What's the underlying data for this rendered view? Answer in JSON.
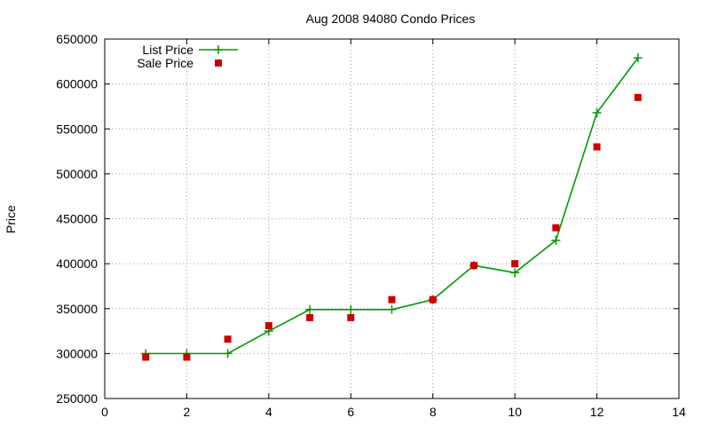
{
  "chart_data": {
    "type": "line",
    "title": "Aug 2008 94080 Condo Prices",
    "xlabel": "",
    "ylabel": "Price",
    "xlim": [
      0,
      14
    ],
    "ylim": [
      250000,
      650000
    ],
    "x_ticks": [
      0,
      2,
      4,
      6,
      8,
      10,
      12,
      14
    ],
    "y_ticks": [
      250000,
      300000,
      350000,
      400000,
      450000,
      500000,
      550000,
      600000,
      650000
    ],
    "grid": true,
    "legend_position": "top-left",
    "series": [
      {
        "name": "List Price",
        "style": "linespoints",
        "marker": "plus",
        "color": "#009900",
        "x": [
          1,
          2,
          3,
          4,
          5,
          6,
          7,
          8,
          9,
          10,
          11,
          12,
          13
        ],
        "y": [
          300000,
          300000,
          300000,
          325000,
          349000,
          349000,
          349000,
          360000,
          398000,
          390000,
          426000,
          568000,
          629000
        ]
      },
      {
        "name": "Sale Price",
        "style": "points",
        "marker": "square",
        "color": "#cc0000",
        "x": [
          1,
          2,
          3,
          4,
          5,
          6,
          7,
          8,
          9,
          10,
          11,
          12,
          13
        ],
        "y": [
          296000,
          296000,
          316000,
          331000,
          340000,
          340000,
          360000,
          360000,
          398000,
          400000,
          440000,
          530000,
          585000
        ]
      }
    ]
  }
}
